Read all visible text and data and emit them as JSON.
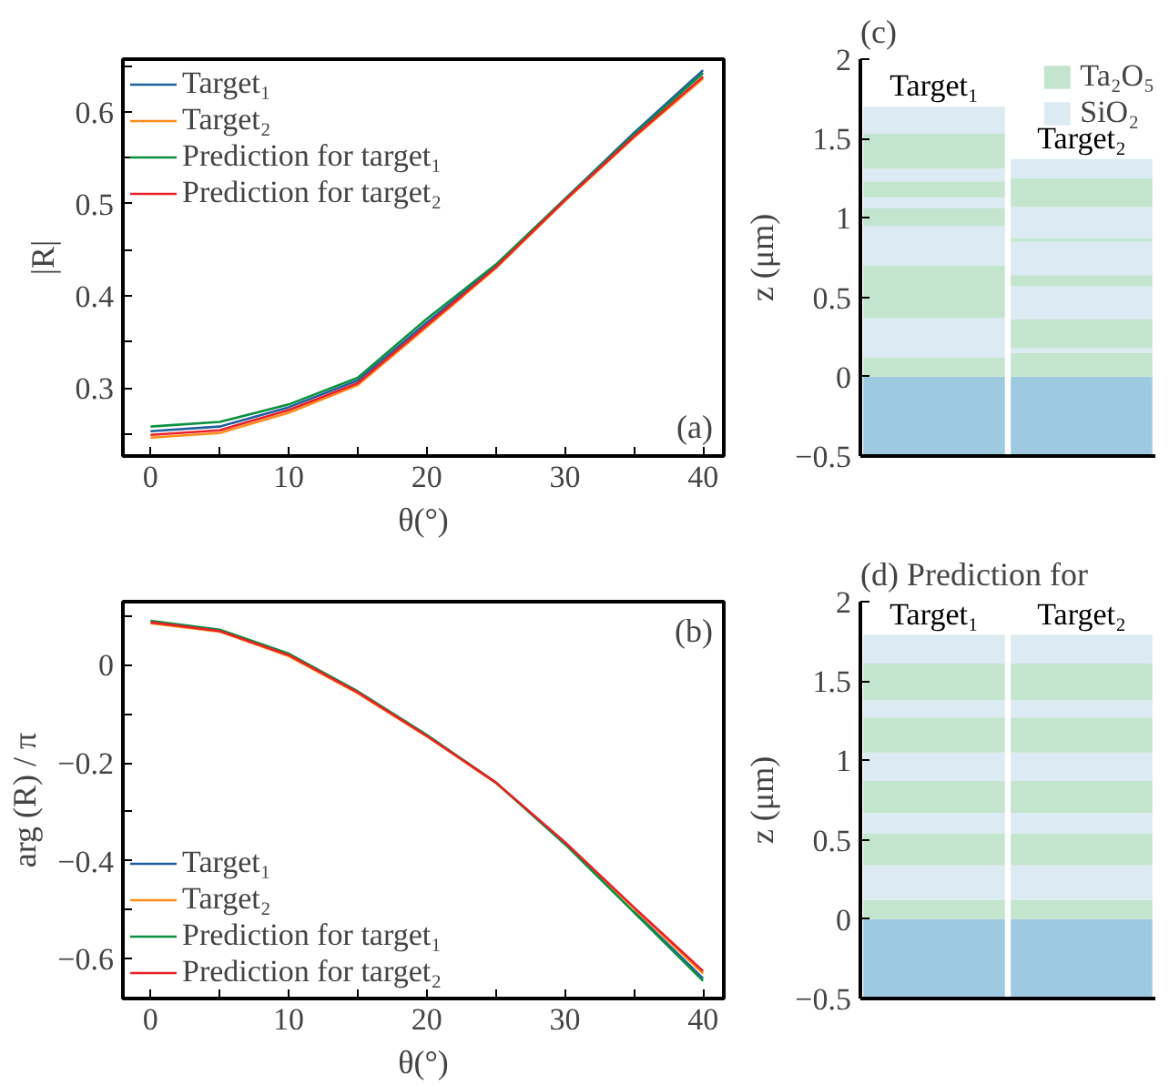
{
  "chart_data": [
    {
      "type": "line",
      "annotations": [
        "(a)"
      ],
      "xlabel": "θ(°)",
      "ylabel": "|R|",
      "x": [
        0,
        5,
        10,
        15,
        20,
        25,
        30,
        35,
        40
      ],
      "series": [
        {
          "name": "Target₁",
          "color": "#1f5fa0",
          "values": [
            0.253,
            0.258,
            0.279,
            0.308,
            0.371,
            0.432,
            0.505,
            0.577,
            0.645
          ]
        },
        {
          "name": "Target₂",
          "color": "#ff8c1a",
          "values": [
            0.246,
            0.251,
            0.273,
            0.303,
            0.366,
            0.43,
            0.503,
            0.572,
            0.636
          ]
        },
        {
          "name": "Prediction for target₁",
          "color": "#0a9040",
          "values": [
            0.258,
            0.263,
            0.282,
            0.311,
            0.375,
            0.434,
            0.505,
            0.575,
            0.642
          ]
        },
        {
          "name": "Prediction for target₂",
          "color": "#e8202a",
          "values": [
            0.249,
            0.254,
            0.276,
            0.305,
            0.368,
            0.431,
            0.504,
            0.573,
            0.638
          ]
        }
      ],
      "xlim": [
        -2,
        41.5
      ],
      "ylim": [
        0.226,
        0.657
      ],
      "xticks": [
        0,
        {
          "value": 5,
          "label": null
        },
        10,
        {
          "value": 15,
          "label": null
        },
        20,
        {
          "value": 25,
          "label": null
        },
        30,
        {
          "value": 35,
          "label": null
        },
        40
      ],
      "yticks": [
        {
          "value": 0.25,
          "label": null
        },
        0.3,
        {
          "value": 0.35,
          "label": null
        },
        0.4,
        {
          "value": 0.45,
          "label": null
        },
        0.5,
        {
          "value": 0.55,
          "label": null
        },
        0.6,
        {
          "value": 0.65,
          "label": null
        }
      ],
      "grid": false,
      "legend": "top left",
      "line_style": "solid"
    },
    {
      "type": "line",
      "annotations": [
        "(b)"
      ],
      "xlabel": "θ(°)",
      "ylabel": "arg (R) / π",
      "x": [
        0,
        5,
        10,
        15,
        20,
        25,
        30,
        35,
        40
      ],
      "series": [
        {
          "name": "Target₁",
          "color": "#1f5fa0",
          "values": [
            null,
            null,
            null,
            null,
            null,
            null,
            null,
            -0.503,
            -0.64
          ]
        },
        {
          "name": "Target₂",
          "color": "#ff8c1a",
          "values": [
            0.085,
            0.068,
            0.018,
            -0.058,
            -0.146,
            -0.241,
            -0.363,
            -0.497,
            -0.63
          ]
        },
        {
          "name": "Prediction for target₁",
          "color": "#0a9040",
          "values": [
            0.09,
            0.072,
            0.023,
            -0.054,
            -0.143,
            -0.24,
            -0.366,
            -0.505,
            -0.645
          ]
        },
        {
          "name": "Prediction for target₂",
          "color": "#e8202a",
          "values": [
            0.087,
            0.069,
            0.02,
            -0.056,
            -0.145,
            -0.24,
            -0.362,
            -0.495,
            -0.625
          ]
        }
      ],
      "xlim": [
        -2,
        41.5
      ],
      "ylim": [
        -0.681,
        0.129
      ],
      "xticks": [
        0,
        {
          "value": 5,
          "label": null
        },
        10,
        {
          "value": 15,
          "label": null
        },
        20,
        {
          "value": 25,
          "label": null
        },
        30,
        {
          "value": 35,
          "label": null
        },
        40
      ],
      "yticks": [
        {
          "value": 0.1,
          "label": null
        },
        0,
        {
          "value": -0.1,
          "label": null
        },
        {
          "value": -0.2,
          "label": "−0.2"
        },
        {
          "value": -0.3,
          "label": null
        },
        {
          "value": -0.4,
          "label": "−0.4"
        },
        {
          "value": -0.5,
          "label": null
        },
        {
          "value": -0.6,
          "label": "−0.6"
        }
      ],
      "grid": false,
      "legend": "bottom left",
      "line_style": "solid"
    },
    {
      "type": "bar",
      "title": "(c)",
      "ylabel": "z (μm)",
      "categories": [
        "Target₁",
        "Target₂"
      ],
      "stacked": true,
      "series": [
        {
          "color": "#9ecae1",
          "values": [
            -0.5,
            -0.5
          ]
        },
        {
          "name": "Ta₂O₅",
          "color": "#c3e4cd",
          "values": [
            0.12,
            0.15
          ]
        },
        {
          "name": "SiO₂",
          "color": "#dbeaf3",
          "values": [
            0.25,
            0.03
          ]
        },
        {
          "color": "#c3e4cd",
          "values": [
            0.33,
            0.18
          ]
        },
        {
          "color": "#dbeaf3",
          "values": [
            0.25,
            0.21
          ]
        },
        {
          "color": "#c3e4cd",
          "values": [
            0.11,
            0.07
          ]
        },
        {
          "color": "#dbeaf3",
          "values": [
            0.07,
            0.21
          ]
        },
        {
          "color": "#c3e4cd",
          "values": [
            0.1,
            0.02
          ]
        },
        {
          "color": "#dbeaf3",
          "values": [
            0.08,
            0.2
          ]
        },
        {
          "color": "#c3e4cd",
          "values": [
            0.22,
            0.18
          ]
        },
        {
          "color": "#dbeaf3",
          "values": [
            0.17,
            0.12
          ]
        }
      ],
      "ylim": [
        -0.5,
        2
      ],
      "yticks": [
        {
          "value": -0.5,
          "label": "−0.5"
        },
        0,
        0.5,
        1,
        1.5,
        2
      ],
      "tick_labels": "y",
      "grid": false,
      "legend": "top right"
    },
    {
      "type": "bar",
      "title": "(d) Prediction for",
      "ylabel": "z (μm)",
      "categories": [
        "Target₁",
        "Target₂"
      ],
      "stacked": true,
      "series": [
        {
          "color": "#9ecae1",
          "values": [
            -0.5,
            -0.5
          ]
        },
        {
          "color": "#c3e4cd",
          "values": [
            0.12,
            0.12
          ]
        },
        {
          "color": "#dbeaf3",
          "values": [
            0.22,
            0.22
          ]
        },
        {
          "color": "#c3e4cd",
          "values": [
            0.2,
            0.2
          ]
        },
        {
          "color": "#dbeaf3",
          "values": [
            0.13,
            0.13
          ]
        },
        {
          "color": "#c3e4cd",
          "values": [
            0.2,
            0.2
          ]
        },
        {
          "color": "#dbeaf3",
          "values": [
            0.18,
            0.18
          ]
        },
        {
          "color": "#c3e4cd",
          "values": [
            0.22,
            0.22
          ]
        },
        {
          "color": "#dbeaf3",
          "values": [
            0.11,
            0.11
          ]
        },
        {
          "color": "#c3e4cd",
          "values": [
            0.23,
            0.23
          ]
        },
        {
          "color": "#dbeaf3",
          "values": [
            0.18,
            0.18
          ]
        }
      ],
      "ylim": [
        -0.5,
        2
      ],
      "yticks": [
        {
          "value": -0.5,
          "label": "−0.5"
        },
        0,
        0.5,
        1,
        1.5,
        2
      ],
      "tick_labels": "y",
      "grid": false
    }
  ]
}
